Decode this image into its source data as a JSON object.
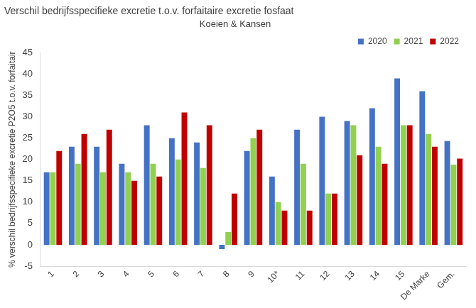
{
  "chart_data": {
    "type": "bar",
    "title": "Verschil bedrijfsspecifieke excretie t.o.v. forfaitaire excretie fosfaat",
    "subtitle": "Koeien & Kansen",
    "y_label": "% verschil bedrijfsspecifieke excretie P2O5 t.o.v. forfaitair",
    "categories": [
      "1",
      "2",
      "3",
      "4",
      "5",
      "6",
      "7",
      "8",
      "9",
      "10*",
      "11",
      "12",
      "13",
      "14",
      "15",
      "De Marke",
      "Gem."
    ],
    "series": [
      {
        "name": "2020",
        "color": "#4472c4",
        "values": [
          17,
          23,
          23,
          19,
          28,
          25,
          24,
          -1,
          22,
          16,
          27,
          30,
          29,
          32,
          39,
          36,
          24.3
        ]
      },
      {
        "name": "2021",
        "color": "#92d050",
        "values": [
          17,
          19,
          17,
          17,
          19,
          20,
          18,
          3,
          25,
          10,
          19,
          12,
          28,
          23,
          28,
          26,
          18.8
        ]
      },
      {
        "name": "2022",
        "color": "#c00000",
        "values": [
          22,
          26,
          27,
          15,
          16,
          31,
          28,
          12,
          27,
          8,
          8,
          12,
          21,
          19,
          28,
          23,
          20.2
        ]
      }
    ],
    "ylim": [
      -5,
      45
    ],
    "yticks": [
      -5,
      0,
      5,
      10,
      15,
      20,
      25,
      30,
      35,
      40,
      45
    ],
    "grid": false,
    "legend": "top-right"
  }
}
